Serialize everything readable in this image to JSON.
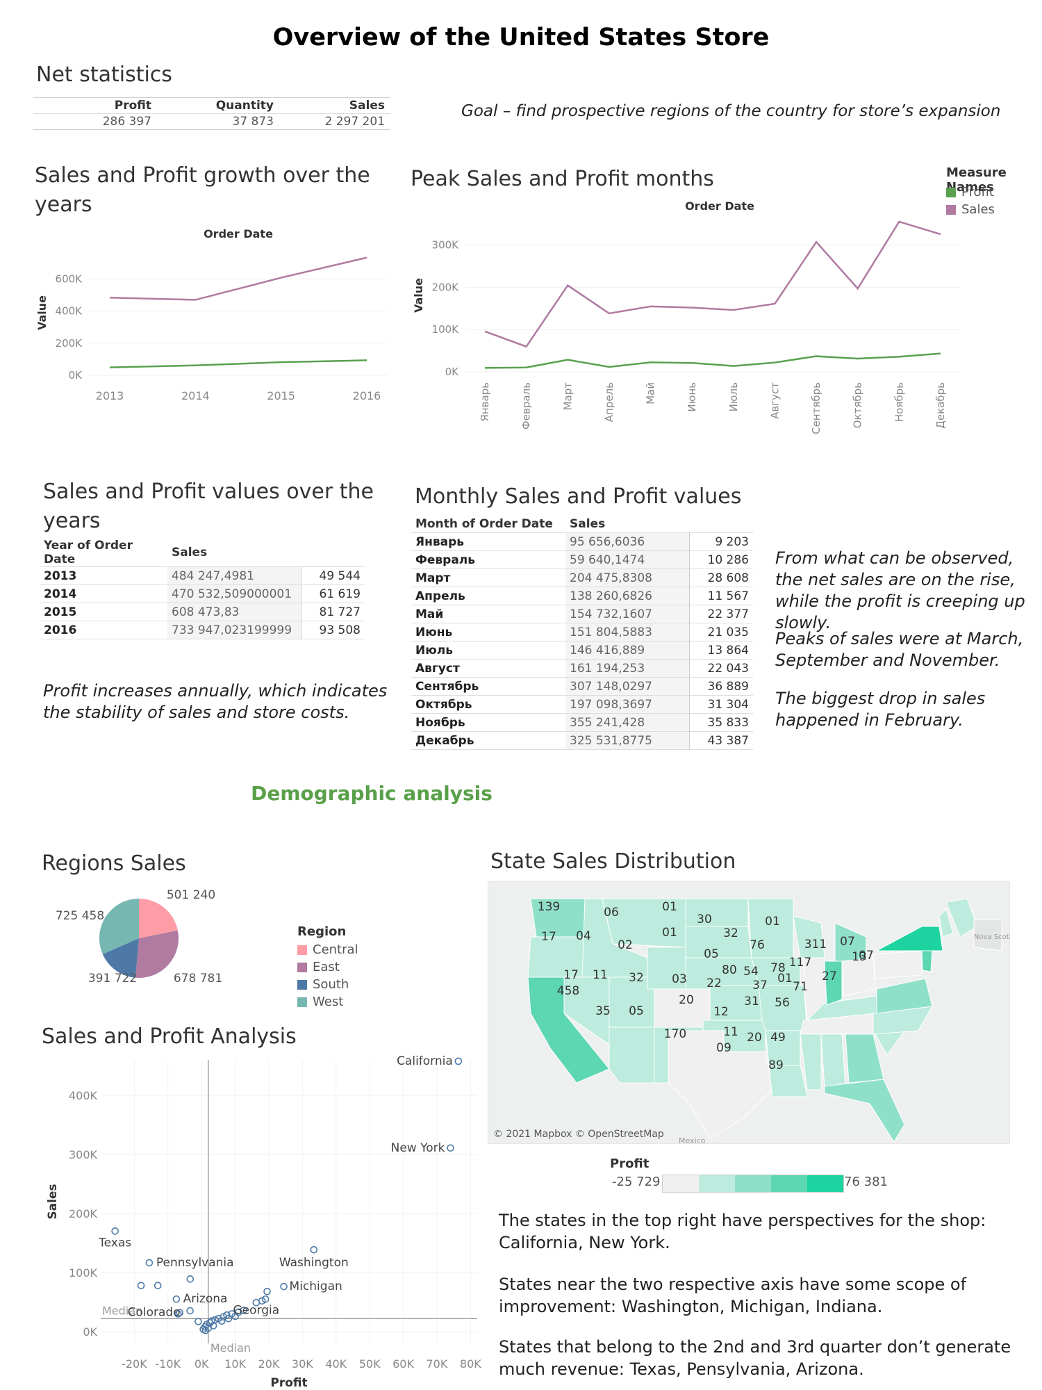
{
  "page_title": "Overview of the United States Store",
  "net_stats": {
    "title": "Net statistics",
    "headers": [
      "Profit",
      "Quantity",
      "Sales"
    ],
    "values": [
      "286 397",
      "37 873",
      "2 297 201"
    ]
  },
  "goal_text": "Goal – find prospective regions of the country for store’s expansion",
  "chart_data": [
    {
      "type": "line",
      "title": "Sales and Profit growth over the years",
      "xlabel": "Order Date",
      "ylabel": "Value",
      "categories": [
        "2013",
        "2014",
        "2015",
        "2016"
      ],
      "yticks": [
        "0K",
        "200K",
        "400K",
        "600K"
      ],
      "ylim": [
        0,
        780000
      ],
      "series": [
        {
          "name": "Sales",
          "color": "#b07aa1",
          "values": [
            484247,
            470533,
            608474,
            733947
          ]
        },
        {
          "name": "Profit",
          "color": "#59a14f",
          "values": [
            49544,
            61619,
            81727,
            93508
          ]
        }
      ]
    },
    {
      "type": "line",
      "title": "Peak Sales and Profit months",
      "xlabel": "Order Date",
      "ylabel": "Value",
      "categories": [
        "Январь",
        "Февраль",
        "Март",
        "Апрель",
        "Май",
        "Июнь",
        "Июль",
        "Август",
        "Сентябрь",
        "Октябрь",
        "Ноябрь",
        "Декабрь"
      ],
      "yticks": [
        "0K",
        "100K",
        "200K",
        "300K"
      ],
      "ylim": [
        0,
        370000
      ],
      "legend": {
        "title": "Measure Names",
        "items": [
          {
            "name": "Profit",
            "color": "#59a14f"
          },
          {
            "name": "Sales",
            "color": "#b07aa1"
          }
        ],
        "placement": "top-right"
      },
      "series": [
        {
          "name": "Sales",
          "color": "#b07aa1",
          "values": [
            95657,
            59640,
            204476,
            138261,
            154732,
            151805,
            146417,
            161194,
            307148,
            197098,
            355241,
            325532
          ]
        },
        {
          "name": "Profit",
          "color": "#59a14f",
          "values": [
            9203,
            10286,
            28608,
            11567,
            22377,
            21035,
            13864,
            22043,
            36889,
            31304,
            35833,
            43387
          ]
        }
      ]
    },
    {
      "type": "table",
      "title": "Sales and Profit values over the years",
      "headers": [
        "Year of Order Date",
        "Sales"
      ],
      "rows": [
        [
          "2013",
          "484 247,4981",
          "49 544"
        ],
        [
          "2014",
          "470 532,509000001",
          "61 619"
        ],
        [
          "2015",
          "608 473,83",
          "81 727"
        ],
        [
          "2016",
          "733 947,023199999",
          "93 508"
        ]
      ]
    },
    {
      "type": "table",
      "title": "Monthly Sales and Profit values",
      "headers": [
        "Month of Order Date",
        "Sales"
      ],
      "rows": [
        [
          "Январь",
          "95 656,6036",
          "9 203"
        ],
        [
          "Февраль",
          "59 640,1474",
          "10 286"
        ],
        [
          "Март",
          "204 475,8308",
          "28 608"
        ],
        [
          "Апрель",
          "138 260,6826",
          "11 567"
        ],
        [
          "Май",
          "154 732,1607",
          "22 377"
        ],
        [
          "Июнь",
          "151 804,5883",
          "21 035"
        ],
        [
          "Июль",
          "146 416,889",
          "13 864"
        ],
        [
          "Август",
          "161 194,253",
          "22 043"
        ],
        [
          "Сентябрь",
          "307 148,0297",
          "36 889"
        ],
        [
          "Октябрь",
          "197 098,3697",
          "31 304"
        ],
        [
          "Ноябрь",
          "355 241,428",
          "35 833"
        ],
        [
          "Декабрь",
          "325 531,8775",
          "43 387"
        ]
      ]
    },
    {
      "type": "pie",
      "title": "Regions Sales",
      "legend": {
        "title": "Region",
        "placement": "right"
      },
      "slices": [
        {
          "name": "Central",
          "value": 501240,
          "label": "501 240",
          "color": "#ff9da7"
        },
        {
          "name": "East",
          "value": 678781,
          "label": "678 781",
          "color": "#b07aa1"
        },
        {
          "name": "South",
          "value": 391722,
          "label": "391 722",
          "color": "#4e79a7"
        },
        {
          "name": "West",
          "value": 725458,
          "label": "725 458",
          "color": "#76b7b2"
        }
      ]
    },
    {
      "type": "scatter",
      "title": "Sales and Profit Analysis",
      "xlabel": "Profit",
      "ylabel": "Sales",
      "xticks": [
        "-20K",
        "-10K",
        "0K",
        "10K",
        "20K",
        "30K",
        "40K",
        "50K",
        "60K",
        "70K",
        "80K"
      ],
      "yticks": [
        "0K",
        "100K",
        "200K",
        "300K",
        "400K"
      ],
      "xlim": [
        -30000,
        82000
      ],
      "ylim": [
        -20000,
        460000
      ],
      "median_x": 2000,
      "median_y": 22000,
      "median_label": "Median",
      "points": [
        {
          "label": "California",
          "x": 76381,
          "y": 457688
        },
        {
          "label": "New York",
          "x": 74039,
          "y": 310876
        },
        {
          "label": "Texas",
          "x": -25729,
          "y": 170188
        },
        {
          "label": "Pennsylvania",
          "x": -15560,
          "y": 116512
        },
        {
          "label": "Washington",
          "x": 33403,
          "y": 138641
        },
        {
          "label": "Michigan",
          "x": 24463,
          "y": 76270
        },
        {
          "label": "Arizona",
          "x": -3428,
          "y": 35282
        },
        {
          "label": "Colorado",
          "x": -6528,
          "y": 32108
        },
        {
          "label": "Georgia",
          "x": 16250,
          "y": 49096
        },
        {
          "label": "",
          "x": -18000,
          "y": 78000
        },
        {
          "label": "",
          "x": -13000,
          "y": 78000
        },
        {
          "label": "",
          "x": -3400,
          "y": 89000
        },
        {
          "label": "",
          "x": -7500,
          "y": 55000
        },
        {
          "label": "",
          "x": -7000,
          "y": 30000
        },
        {
          "label": "",
          "x": -1000,
          "y": 17000
        },
        {
          "label": "",
          "x": 18000,
          "y": 52000
        },
        {
          "label": "",
          "x": 19500,
          "y": 68000
        },
        {
          "label": "",
          "x": 19000,
          "y": 55000
        },
        {
          "label": "",
          "x": 500,
          "y": 4000
        },
        {
          "label": "",
          "x": 1000,
          "y": 8000
        },
        {
          "label": "",
          "x": 1500,
          "y": 12000
        },
        {
          "label": "",
          "x": 2500,
          "y": 15000
        },
        {
          "label": "",
          "x": 3000,
          "y": 18000
        },
        {
          "label": "",
          "x": 4000,
          "y": 20000
        },
        {
          "label": "",
          "x": 5000,
          "y": 22000
        },
        {
          "label": "",
          "x": 6500,
          "y": 25000
        },
        {
          "label": "",
          "x": 7500,
          "y": 28000
        },
        {
          "label": "",
          "x": 9000,
          "y": 30000
        },
        {
          "label": "",
          "x": 11000,
          "y": 33000
        },
        {
          "label": "",
          "x": 12500,
          "y": 36000
        },
        {
          "label": "",
          "x": 10000,
          "y": 26000
        },
        {
          "label": "",
          "x": 8000,
          "y": 22000
        },
        {
          "label": "",
          "x": 6000,
          "y": 18000
        },
        {
          "label": "",
          "x": 3500,
          "y": 10000
        },
        {
          "label": "",
          "x": 2000,
          "y": 6000
        },
        {
          "label": "",
          "x": 1200,
          "y": 2000
        }
      ]
    },
    {
      "type": "heatmap",
      "title": "State Sales Distribution",
      "color_legend": {
        "title": "Profit",
        "min_label": "-25 729",
        "max_label": "76 381"
      },
      "attribution": "© 2021 Mapbox © OpenStreetMap",
      "map_labels": [
        "139",
        "06",
        "01",
        "30",
        "32",
        "01",
        "17",
        "04",
        "02",
        "01",
        "05",
        "76",
        "311",
        "07",
        "07",
        "80",
        "54",
        "78",
        "117",
        "13",
        "17",
        "11",
        "32",
        "03",
        "22",
        "37",
        "01",
        "71",
        "27",
        "458",
        "20",
        "31",
        "56",
        "35",
        "05",
        "12",
        "11",
        "20",
        "49",
        "170",
        "09",
        "89"
      ],
      "extra_text": [
        "Nova Scoti",
        "Mexico"
      ]
    }
  ],
  "notes": {
    "yearly": "Profit increases annually, which indicates the stability of sales and store costs.",
    "monthly_1": "From what can be observed, the net sales are on the rise, while the profit is creeping up slowly.",
    "monthly_2": "Peaks of sales were at March, September and November.",
    "monthly_3": "The biggest drop in sales happened in February."
  },
  "demographic_title": "Demographic analysis",
  "conclusions": {
    "p1": "The states in the top right have perspectives for the shop: California, New York.",
    "p2": "States near the two respective axis have some scope of improvement: Washington, Michigan, Indiana.",
    "p3": "States that belong to the 2nd and 3rd quarter don’t generate much revenue: Texas, Pensylvania, Arizona."
  },
  "colors": {
    "sales": "#b07aa1",
    "profit": "#59a14f",
    "map_low": "#f0f0f0",
    "map_high": "#1dd3a0"
  }
}
